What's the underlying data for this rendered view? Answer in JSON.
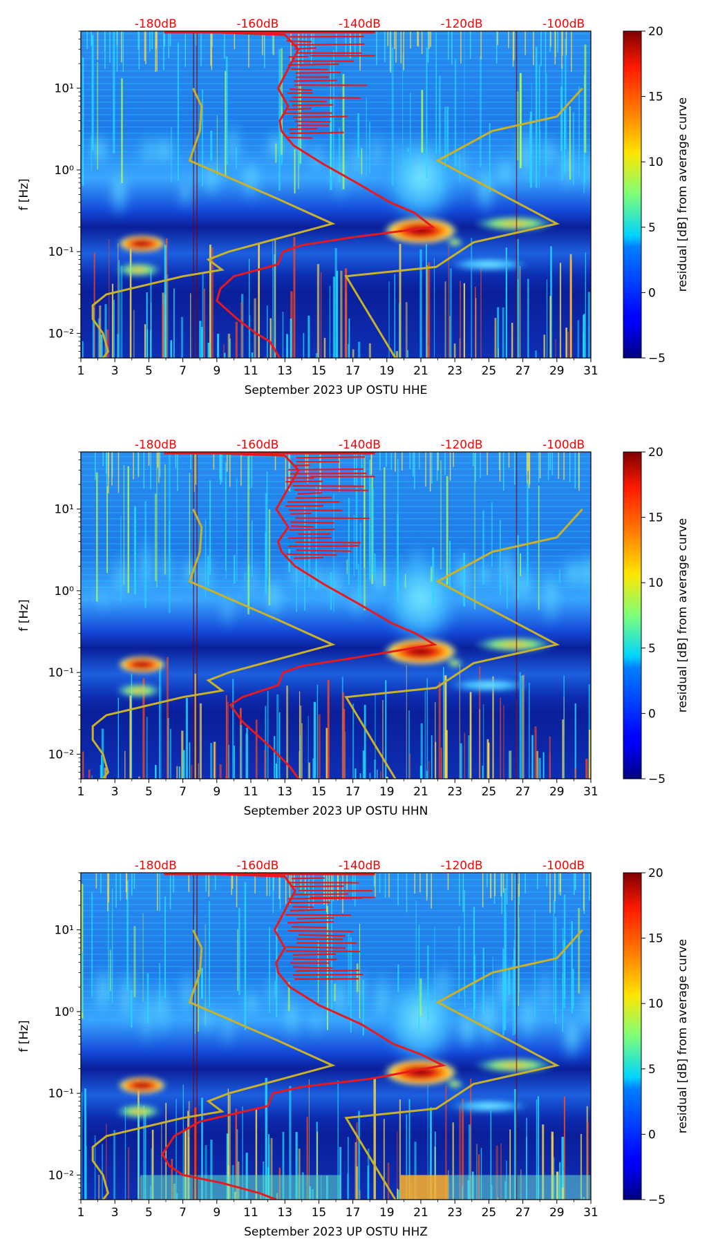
{
  "colors": {
    "noise_curve": "#e8191c",
    "model_curve": "#c9b22a",
    "db_label": "#ff0000",
    "axis": "#000000"
  },
  "chart_data": [
    {
      "type": "heatmap",
      "channel": "HHE",
      "xlabel": "September 2023 UP OSTU  HHE",
      "ylabel": "f [Hz]",
      "x_ticks": [
        "1",
        "3",
        "5",
        "7",
        "9",
        "11",
        "13",
        "15",
        "17",
        "19",
        "21",
        "23",
        "25",
        "27",
        "29",
        "31"
      ],
      "x_range": [
        1,
        31
      ],
      "y_ticks": [
        "10⁻²",
        "10⁻¹",
        "10⁰",
        "10¹"
      ],
      "y_range": [
        0.005,
        50
      ],
      "db_labels": [
        "-180dB",
        "-160dB",
        "-140dB",
        "-120dB",
        "-100dB"
      ],
      "colorbar_label": "residual [dB] from average curve",
      "colorbar_ticks": [
        "20",
        "15",
        "10",
        "5",
        "0",
        "−5"
      ],
      "colorbar_range": [
        -5,
        20
      ],
      "noise_curve": [
        [
          8,
          49
        ],
        [
          13,
          45
        ],
        [
          13.8,
          30
        ],
        [
          12.6,
          10
        ],
        [
          13.2,
          6
        ],
        [
          12.7,
          4
        ],
        [
          12.8,
          3
        ],
        [
          13.5,
          2
        ],
        [
          15.2,
          1.2
        ],
        [
          17.2,
          0.7
        ],
        [
          19.2,
          0.4
        ],
        [
          20.6,
          0.3
        ],
        [
          21.7,
          0.2
        ],
        [
          17,
          0.15
        ],
        [
          14,
          0.12
        ],
        [
          12.9,
          0.1
        ],
        [
          12.6,
          0.07
        ],
        [
          10,
          0.05
        ],
        [
          9.2,
          0.035
        ],
        [
          9,
          0.025
        ],
        [
          10.2,
          0.015
        ],
        [
          11.3,
          0.01
        ],
        [
          12.1,
          0.008
        ],
        [
          12.7,
          0.005
        ]
      ],
      "model_curve": [
        [
          2.3,
          0.005
        ],
        [
          2.6,
          0.006
        ],
        [
          2.3,
          0.01
        ],
        [
          1.7,
          0.015
        ],
        [
          1.7,
          0.022
        ],
        [
          2.5,
          0.03
        ],
        [
          7,
          0.05
        ],
        [
          9.3,
          0.06
        ],
        [
          8.5,
          0.08
        ],
        [
          9.7,
          0.1
        ],
        [
          15.8,
          0.22
        ],
        [
          12.5,
          0.45
        ],
        [
          7.4,
          1.3
        ],
        [
          8,
          3
        ],
        [
          8.1,
          6
        ],
        [
          7.6,
          10
        ]
      ],
      "model_curve_high": [
        [
          19.5,
          0.005
        ],
        [
          16.6,
          0.05
        ],
        [
          21.9,
          0.065
        ],
        [
          24.1,
          0.13
        ],
        [
          29,
          0.22
        ],
        [
          22,
          1.3
        ],
        [
          25.2,
          3
        ],
        [
          29,
          4.5
        ],
        [
          30.5,
          10
        ]
      ]
    },
    {
      "type": "heatmap",
      "channel": "HHN",
      "xlabel": "September 2023 UP OSTU  HHN",
      "ylabel": "f [Hz]",
      "x_ticks": [
        "1",
        "3",
        "5",
        "7",
        "9",
        "11",
        "13",
        "15",
        "17",
        "19",
        "21",
        "23",
        "25",
        "27",
        "29",
        "31"
      ],
      "x_range": [
        1,
        31
      ],
      "y_ticks": [
        "10⁻²",
        "10⁻¹",
        "10⁰",
        "10¹"
      ],
      "y_range": [
        0.005,
        50
      ],
      "db_labels": [
        "-180dB",
        "-160dB",
        "-140dB",
        "-120dB",
        "-100dB"
      ],
      "colorbar_label": "residual [dB] from average curve",
      "colorbar_ticks": [
        "20",
        "15",
        "10",
        "5",
        "0",
        "−5"
      ],
      "colorbar_range": [
        -5,
        20
      ],
      "noise_curve": [
        [
          8,
          49
        ],
        [
          13,
          45
        ],
        [
          13.8,
          30
        ],
        [
          12.5,
          10
        ],
        [
          13.2,
          6
        ],
        [
          12.6,
          4
        ],
        [
          12.8,
          3
        ],
        [
          13.6,
          2
        ],
        [
          15.3,
          1.2
        ],
        [
          17.3,
          0.7
        ],
        [
          19.3,
          0.4
        ],
        [
          20.7,
          0.3
        ],
        [
          21.8,
          0.22
        ],
        [
          17,
          0.15
        ],
        [
          14,
          0.12
        ],
        [
          12.9,
          0.1
        ],
        [
          12.6,
          0.07
        ],
        [
          10.5,
          0.05
        ],
        [
          9.8,
          0.04
        ],
        [
          10.5,
          0.025
        ],
        [
          12.2,
          0.012
        ],
        [
          13.3,
          0.007
        ],
        [
          13.8,
          0.005
        ]
      ],
      "model_curve": [
        [
          2.3,
          0.005
        ],
        [
          2.6,
          0.006
        ],
        [
          2.3,
          0.01
        ],
        [
          1.7,
          0.015
        ],
        [
          1.7,
          0.022
        ],
        [
          2.5,
          0.03
        ],
        [
          7,
          0.05
        ],
        [
          9.3,
          0.06
        ],
        [
          8.5,
          0.08
        ],
        [
          9.7,
          0.1
        ],
        [
          15.8,
          0.22
        ],
        [
          12.5,
          0.45
        ],
        [
          7.4,
          1.3
        ],
        [
          8,
          3
        ],
        [
          8.1,
          6
        ],
        [
          7.6,
          10
        ]
      ],
      "model_curve_high": [
        [
          19.5,
          0.005
        ],
        [
          16.6,
          0.05
        ],
        [
          21.9,
          0.065
        ],
        [
          24.1,
          0.13
        ],
        [
          29,
          0.22
        ],
        [
          22,
          1.3
        ],
        [
          25.2,
          3
        ],
        [
          29,
          4.5
        ],
        [
          30.5,
          10
        ]
      ]
    },
    {
      "type": "heatmap",
      "channel": "HHZ",
      "xlabel": "September 2023 UP OSTU  HHZ",
      "ylabel": "f [Hz]",
      "x_ticks": [
        "1",
        "3",
        "5",
        "7",
        "9",
        "11",
        "13",
        "15",
        "17",
        "19",
        "21",
        "23",
        "25",
        "27",
        "29",
        "31"
      ],
      "x_range": [
        1,
        31
      ],
      "y_ticks": [
        "10⁻²",
        "10⁻¹",
        "10⁰",
        "10¹"
      ],
      "y_range": [
        0.005,
        50
      ],
      "db_labels": [
        "-180dB",
        "-160dB",
        "-140dB",
        "-120dB",
        "-100dB"
      ],
      "colorbar_label": "residual [dB] from average curve",
      "colorbar_ticks": [
        "20",
        "15",
        "10",
        "5",
        "0",
        "−5"
      ],
      "colorbar_range": [
        -5,
        20
      ],
      "noise_curve": [
        [
          8,
          49
        ],
        [
          13,
          45
        ],
        [
          13.6,
          30
        ],
        [
          12.4,
          10
        ],
        [
          13,
          6
        ],
        [
          12.5,
          4
        ],
        [
          12.6,
          3
        ],
        [
          13.3,
          2
        ],
        [
          15,
          1.2
        ],
        [
          17.5,
          0.7
        ],
        [
          19.4,
          0.4
        ],
        [
          21,
          0.3
        ],
        [
          22.3,
          0.22
        ],
        [
          18,
          0.15
        ],
        [
          14,
          0.12
        ],
        [
          12.3,
          0.1
        ],
        [
          12,
          0.07
        ],
        [
          8,
          0.045
        ],
        [
          6.5,
          0.03
        ],
        [
          5.8,
          0.018
        ],
        [
          6.2,
          0.013
        ],
        [
          7,
          0.01
        ],
        [
          9.3,
          0.008
        ],
        [
          11.5,
          0.006
        ],
        [
          12.5,
          0.005
        ]
      ],
      "model_curve": [
        [
          2.3,
          0.005
        ],
        [
          2.6,
          0.006
        ],
        [
          2.3,
          0.01
        ],
        [
          1.7,
          0.015
        ],
        [
          1.7,
          0.022
        ],
        [
          2.5,
          0.03
        ],
        [
          7,
          0.05
        ],
        [
          9.3,
          0.06
        ],
        [
          8.5,
          0.08
        ],
        [
          9.7,
          0.1
        ],
        [
          15.8,
          0.22
        ],
        [
          12.5,
          0.45
        ],
        [
          7.4,
          1.3
        ],
        [
          8,
          3
        ],
        [
          8.1,
          6
        ],
        [
          7.6,
          10
        ]
      ],
      "model_curve_high": [
        [
          19.5,
          0.005
        ],
        [
          16.6,
          0.05
        ],
        [
          21.9,
          0.065
        ],
        [
          24.1,
          0.13
        ],
        [
          29,
          0.22
        ],
        [
          22,
          1.3
        ],
        [
          25.2,
          3
        ],
        [
          29,
          4.5
        ],
        [
          30.5,
          10
        ]
      ]
    }
  ]
}
